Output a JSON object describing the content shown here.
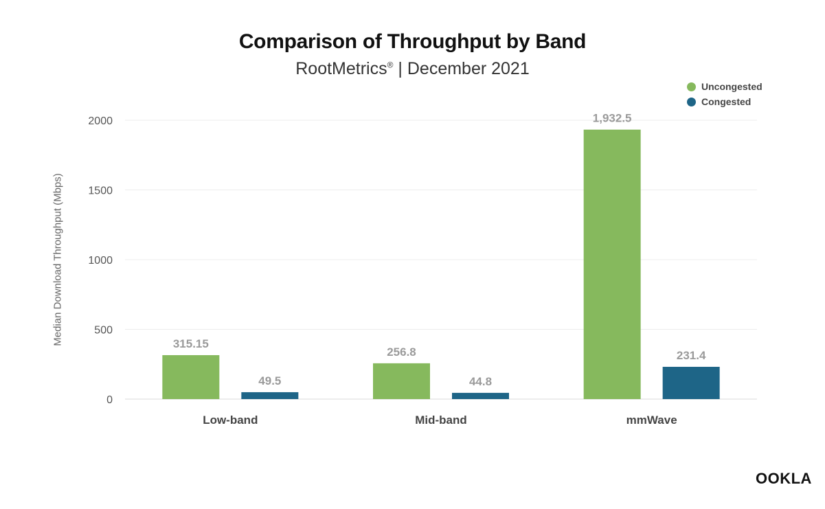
{
  "chart_data": {
    "type": "bar",
    "title": "Comparison of Throughput by Band",
    "subtitle_main": "RootMetrics",
    "subtitle_reg": "®",
    "subtitle_rest": " | December 2021",
    "ylabel": "Median Download Throughput (Mbps)",
    "xlabel": "",
    "categories": [
      "Low-band",
      "Mid-band",
      "mmWave"
    ],
    "series": [
      {
        "name": "Uncongested",
        "color": "#86b95d",
        "values": [
          315.15,
          256.8,
          1932.5
        ],
        "labels": [
          "315.15",
          "256.8",
          "1,932.5"
        ]
      },
      {
        "name": "Congested",
        "color": "#1e6587",
        "values": [
          49.5,
          44.8,
          231.4
        ],
        "labels": [
          "49.5",
          "44.8",
          "231.4"
        ]
      }
    ],
    "ylim": [
      0,
      2000
    ],
    "yticks": [
      0,
      500,
      1000,
      1500,
      2000
    ],
    "grid": true,
    "legend_position": "top-right"
  },
  "logo": {
    "text": "OOKLA",
    "icon": "ookla-logo"
  }
}
